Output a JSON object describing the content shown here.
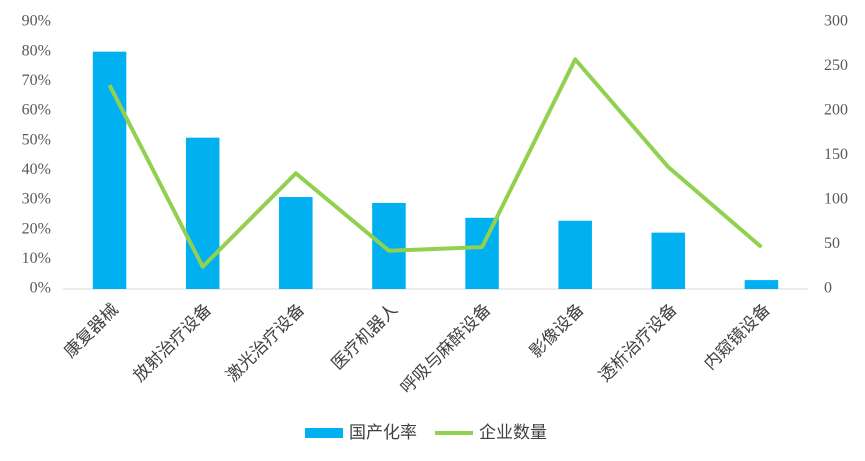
{
  "chart_data": {
    "type": "bar",
    "categories": [
      "康复器械",
      "放射治疗设备",
      "激光治疗设备",
      "医疗机器人",
      "呼吸与麻醉设备",
      "影像设备",
      "透析治疗设备",
      "内窥镜设备"
    ],
    "series": [
      {
        "name": "国产化率",
        "type": "bar",
        "color": "#00b0f0",
        "values": [
          80,
          51,
          31,
          29,
          24,
          23,
          19,
          3
        ]
      },
      {
        "name": "企业数量",
        "type": "line",
        "axis": "y2",
        "color": "#92d050",
        "values": [
          229,
          25,
          130,
          43,
          47,
          258,
          137,
          47
        ]
      }
    ],
    "ylim": [
      0,
      90
    ],
    "yticks": [
      {
        "value": 0,
        "label": "0%"
      },
      {
        "value": 10,
        "label": "10%"
      },
      {
        "value": 20,
        "label": "20%"
      },
      {
        "value": 30,
        "label": "30%"
      },
      {
        "value": 40,
        "label": "40%"
      },
      {
        "value": 50,
        "label": "50%"
      },
      {
        "value": 60,
        "label": "60%"
      },
      {
        "value": 70,
        "label": "70%"
      },
      {
        "value": 80,
        "label": "80%"
      },
      {
        "value": 90,
        "label": "90%"
      }
    ],
    "y2lim": [
      0,
      300
    ],
    "y2ticks": [
      0,
      50,
      100,
      150,
      200,
      250,
      300
    ],
    "legend": "bottom"
  }
}
